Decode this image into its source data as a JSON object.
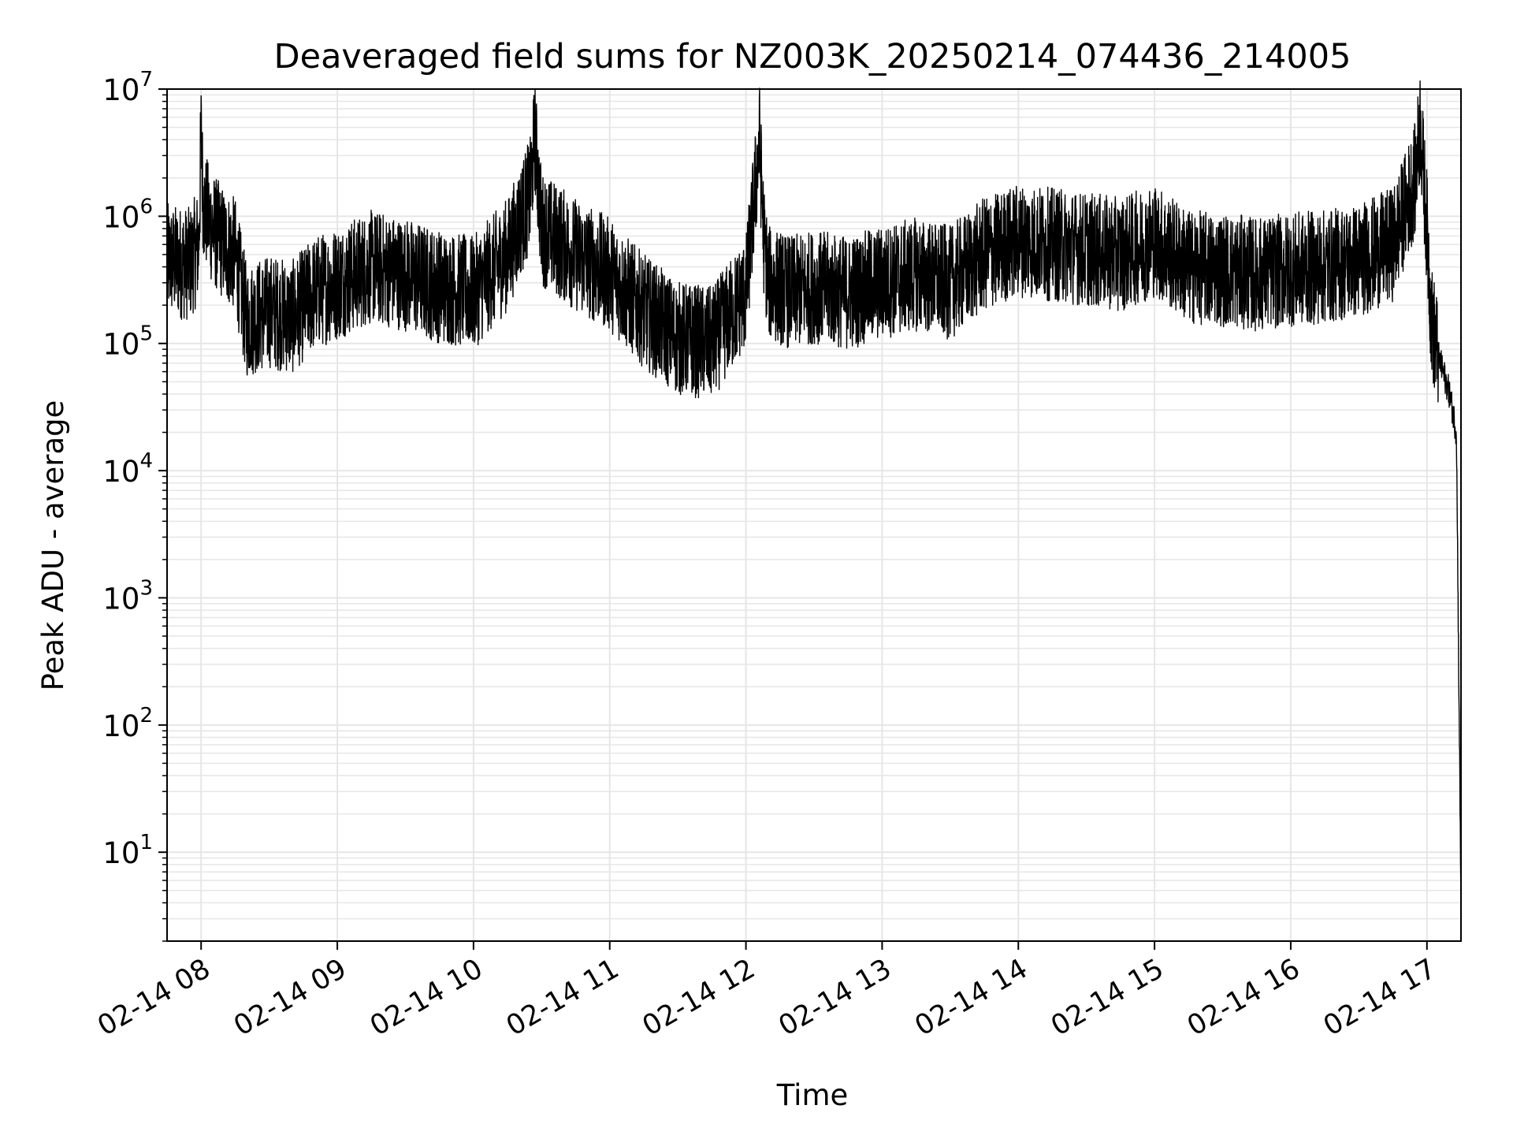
{
  "chart_data": {
    "type": "line",
    "title": "Deaveraged field sums for NZ003K_20250214_074436_214005",
    "xlabel": "Time",
    "ylabel": "Peak ADU - average",
    "yscale": "log",
    "ylim": [
      2,
      10000000
    ],
    "xlim": [
      "2025-02-14 07:45",
      "2025-02-14 17:15"
    ],
    "grid": true,
    "line_color": "#000000",
    "grid_color": "#e6e6e6",
    "x_ticks": [
      {
        "value": "2025-02-14 08:00",
        "label": "02-14 08"
      },
      {
        "value": "2025-02-14 09:00",
        "label": "02-14 09"
      },
      {
        "value": "2025-02-14 10:00",
        "label": "02-14 10"
      },
      {
        "value": "2025-02-14 11:00",
        "label": "02-14 11"
      },
      {
        "value": "2025-02-14 12:00",
        "label": "02-14 12"
      },
      {
        "value": "2025-02-14 13:00",
        "label": "02-14 13"
      },
      {
        "value": "2025-02-14 14:00",
        "label": "02-14 14"
      },
      {
        "value": "2025-02-14 15:00",
        "label": "02-14 15"
      },
      {
        "value": "2025-02-14 16:00",
        "label": "02-14 16"
      },
      {
        "value": "2025-02-14 17:00",
        "label": "02-14 17"
      }
    ],
    "y_ticks": [
      {
        "value": 10,
        "base": "10",
        "exp": "1"
      },
      {
        "value": 100,
        "base": "10",
        "exp": "2"
      },
      {
        "value": 1000,
        "base": "10",
        "exp": "3"
      },
      {
        "value": 10000,
        "base": "10",
        "exp": "4"
      },
      {
        "value": 100000,
        "base": "10",
        "exp": "5"
      },
      {
        "value": 1000000,
        "base": "10",
        "exp": "6"
      },
      {
        "value": 10000000,
        "base": "10",
        "exp": "7"
      }
    ],
    "series": [
      {
        "x": [
          "2025-02-14 07:45",
          "2025-02-14 07:55",
          "2025-02-14 07:59",
          "2025-02-14 08:00",
          "2025-02-14 08:01",
          "2025-02-14 08:05",
          "2025-02-14 08:10",
          "2025-02-14 08:15",
          "2025-02-14 08:20",
          "2025-02-14 08:30",
          "2025-02-14 08:40",
          "2025-02-14 08:50",
          "2025-02-14 09:00",
          "2025-02-14 09:15",
          "2025-02-14 09:30",
          "2025-02-14 09:45",
          "2025-02-14 10:00",
          "2025-02-14 10:15",
          "2025-02-14 10:25",
          "2025-02-14 10:27",
          "2025-02-14 10:30",
          "2025-02-14 10:45",
          "2025-02-14 11:00",
          "2025-02-14 11:15",
          "2025-02-14 11:30",
          "2025-02-14 11:45",
          "2025-02-14 12:00",
          "2025-02-14 12:06",
          "2025-02-14 12:08",
          "2025-02-14 12:10",
          "2025-02-14 12:20",
          "2025-02-14 12:30",
          "2025-02-14 12:45",
          "2025-02-14 13:00",
          "2025-02-14 13:15",
          "2025-02-14 13:30",
          "2025-02-14 13:45",
          "2025-02-14 14:00",
          "2025-02-14 14:15",
          "2025-02-14 14:30",
          "2025-02-14 14:45",
          "2025-02-14 15:00",
          "2025-02-14 15:15",
          "2025-02-14 15:30",
          "2025-02-14 15:45",
          "2025-02-14 16:00",
          "2025-02-14 16:15",
          "2025-02-14 16:30",
          "2025-02-14 16:45",
          "2025-02-14 16:55",
          "2025-02-14 16:57",
          "2025-02-14 17:00",
          "2025-02-14 17:02",
          "2025-02-14 17:05",
          "2025-02-14 17:10",
          "2025-02-14 17:13",
          "2025-02-14 17:15"
        ],
        "y": [
          450000,
          420000,
          600000,
          4500000,
          1200000,
          800000,
          600000,
          500000,
          150000,
          180000,
          160000,
          250000,
          300000,
          400000,
          350000,
          280000,
          250000,
          500000,
          1500000,
          4300000,
          800000,
          500000,
          350000,
          180000,
          110000,
          100000,
          250000,
          3900000,
          600000,
          300000,
          250000,
          280000,
          250000,
          300000,
          350000,
          300000,
          500000,
          650000,
          600000,
          550000,
          500000,
          650000,
          400000,
          380000,
          350000,
          380000,
          400000,
          450000,
          600000,
          2000000,
          5500000,
          800000,
          150000,
          80000,
          40000,
          20000,
          4
        ]
      }
    ]
  }
}
